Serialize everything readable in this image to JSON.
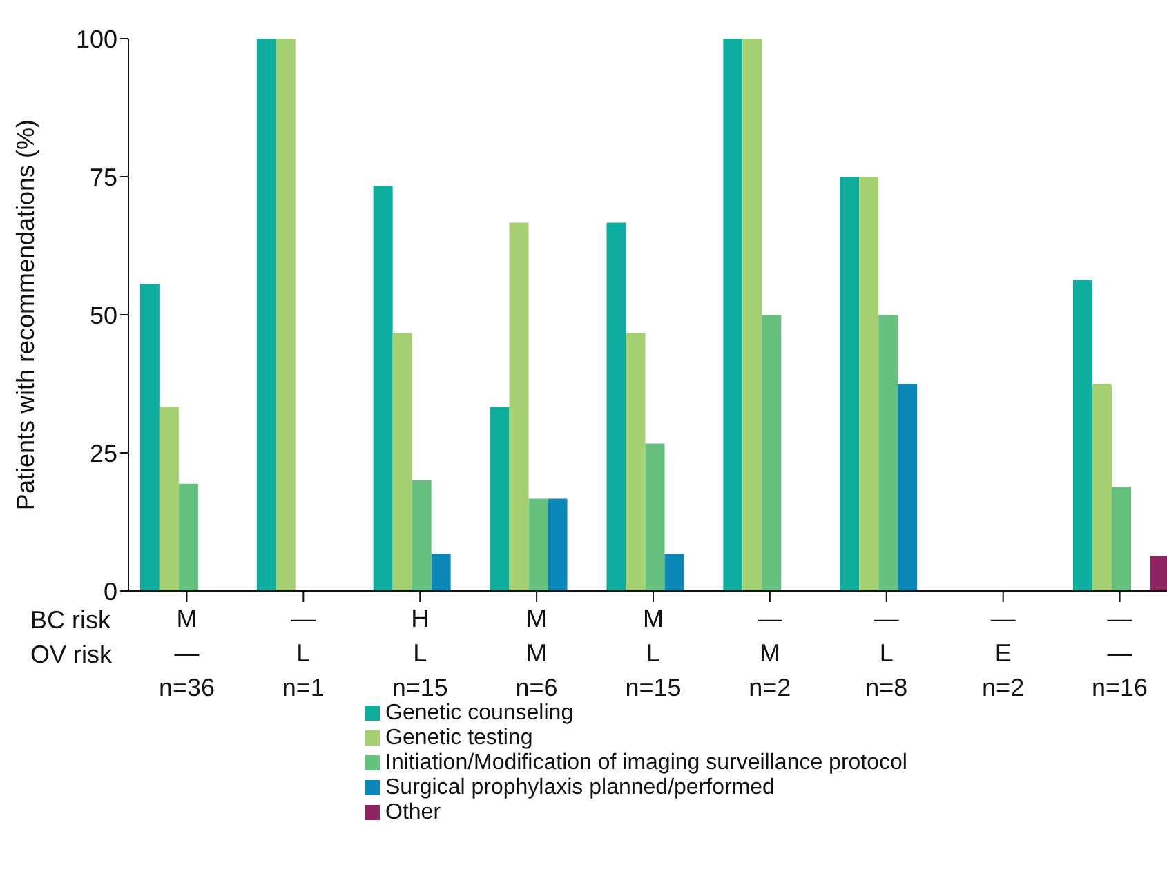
{
  "chart_data": {
    "type": "bar",
    "ylabel": "Patients with recommendations (%)",
    "categories": [
      "M\n—\nn=36",
      "—\nL\nn=1",
      "H\nL\nn=15",
      "M\nM\nn=6",
      "M\nL\nn=15",
      "—\nM\nn=2",
      "—\nL\nn=8",
      "—\nE\nn=2",
      "—\n—\nn=16"
    ],
    "series": [
      {
        "name": "Genetic counseling",
        "color": "#0eada0",
        "values": [
          55.6,
          100,
          73.3,
          33.3,
          66.7,
          100,
          75,
          0,
          56.3
        ]
      },
      {
        "name": "Genetic testing",
        "color": "#a5d173",
        "values": [
          33.3,
          100,
          46.7,
          66.7,
          46.7,
          100,
          75,
          0,
          37.5
        ]
      },
      {
        "name": "Initiation/Modification of imaging surveillance protocol",
        "color": "#66c17f",
        "values": [
          19.4,
          0,
          20,
          16.7,
          26.7,
          50,
          50,
          0,
          18.8
        ]
      },
      {
        "name": "Surgical prophylaxis planned/performed",
        "color": "#0b87b8",
        "values": [
          0,
          0,
          6.7,
          16.7,
          6.7,
          0,
          37.5,
          0,
          0
        ]
      },
      {
        "name": "Other",
        "color": "#8e2462",
        "values": [
          0,
          0,
          0,
          0,
          0,
          0,
          0,
          0,
          6.3
        ]
      }
    ],
    "ylim": [
      0,
      100
    ],
    "yticks": [
      0,
      25,
      50,
      75,
      100
    ],
    "annotations": [
      "BC risk",
      "OV risk"
    ],
    "grid": false,
    "legend": "bottom"
  }
}
